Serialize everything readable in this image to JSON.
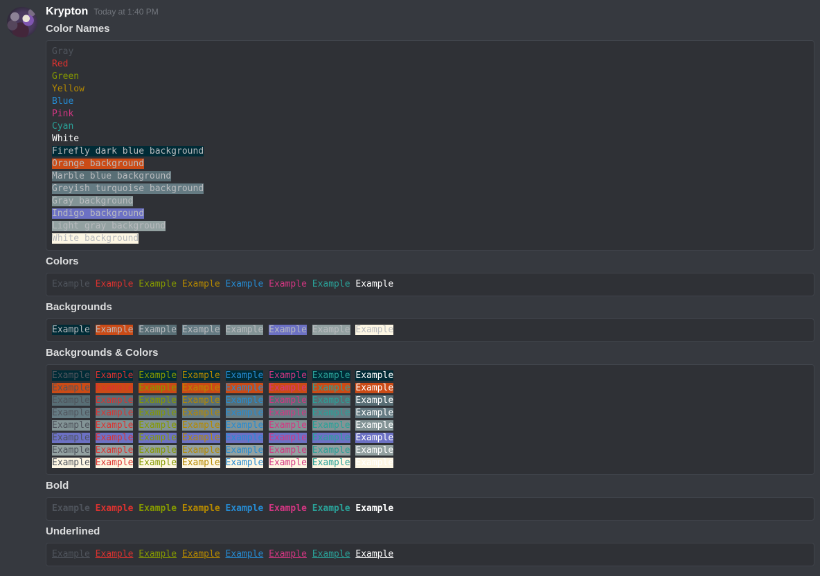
{
  "message": {
    "username": "Krypton",
    "timestamp": "Today at 1:40 PM"
  },
  "palette": {
    "page_background": "#36393f",
    "codeblock_background": "#2f3136",
    "codeblock_border": "#40444b",
    "default_code_text": "#b9bbbe",
    "foreground": [
      {
        "key": "gray",
        "hex": "#4f545c",
        "label": "Gray"
      },
      {
        "key": "red",
        "hex": "#dc322f",
        "label": "Red"
      },
      {
        "key": "green",
        "hex": "#859900",
        "label": "Green"
      },
      {
        "key": "yellow",
        "hex": "#b58900",
        "label": "Yellow"
      },
      {
        "key": "blue",
        "hex": "#268bd2",
        "label": "Blue"
      },
      {
        "key": "pink",
        "hex": "#d33682",
        "label": "Pink"
      },
      {
        "key": "cyan",
        "hex": "#2aa198",
        "label": "Cyan"
      },
      {
        "key": "white",
        "hex": "#ffffff",
        "label": "White"
      }
    ],
    "background": [
      {
        "key": "firefly-dark-blue",
        "hex": "#002b36",
        "label": "Firefly dark blue background"
      },
      {
        "key": "orange",
        "hex": "#cb4b16",
        "label": "Orange background"
      },
      {
        "key": "marble-blue",
        "hex": "#586e75",
        "label": "Marble blue background"
      },
      {
        "key": "greyish-turquoise",
        "hex": "#657b83",
        "label": "Greyish turquoise background"
      },
      {
        "key": "gray",
        "hex": "#839496",
        "label": "Gray background"
      },
      {
        "key": "indigo",
        "hex": "#6c71c4",
        "label": "Indigo background"
      },
      {
        "key": "light-gray",
        "hex": "#93a1a1",
        "label": "Light gray background"
      },
      {
        "key": "white",
        "hex": "#fdf6e3",
        "label": "White background"
      }
    ]
  },
  "sections": {
    "color_names": {
      "title": "Color Names"
    },
    "colors": {
      "title": "Colors",
      "word": "Example"
    },
    "backgrounds": {
      "title": "Backgrounds",
      "word": "Example"
    },
    "grid": {
      "title": "Backgrounds & Colors",
      "word": "Example"
    },
    "bold": {
      "title": "Bold",
      "word": "Example"
    },
    "underlined": {
      "title": "Underlined",
      "word": "Example"
    }
  }
}
